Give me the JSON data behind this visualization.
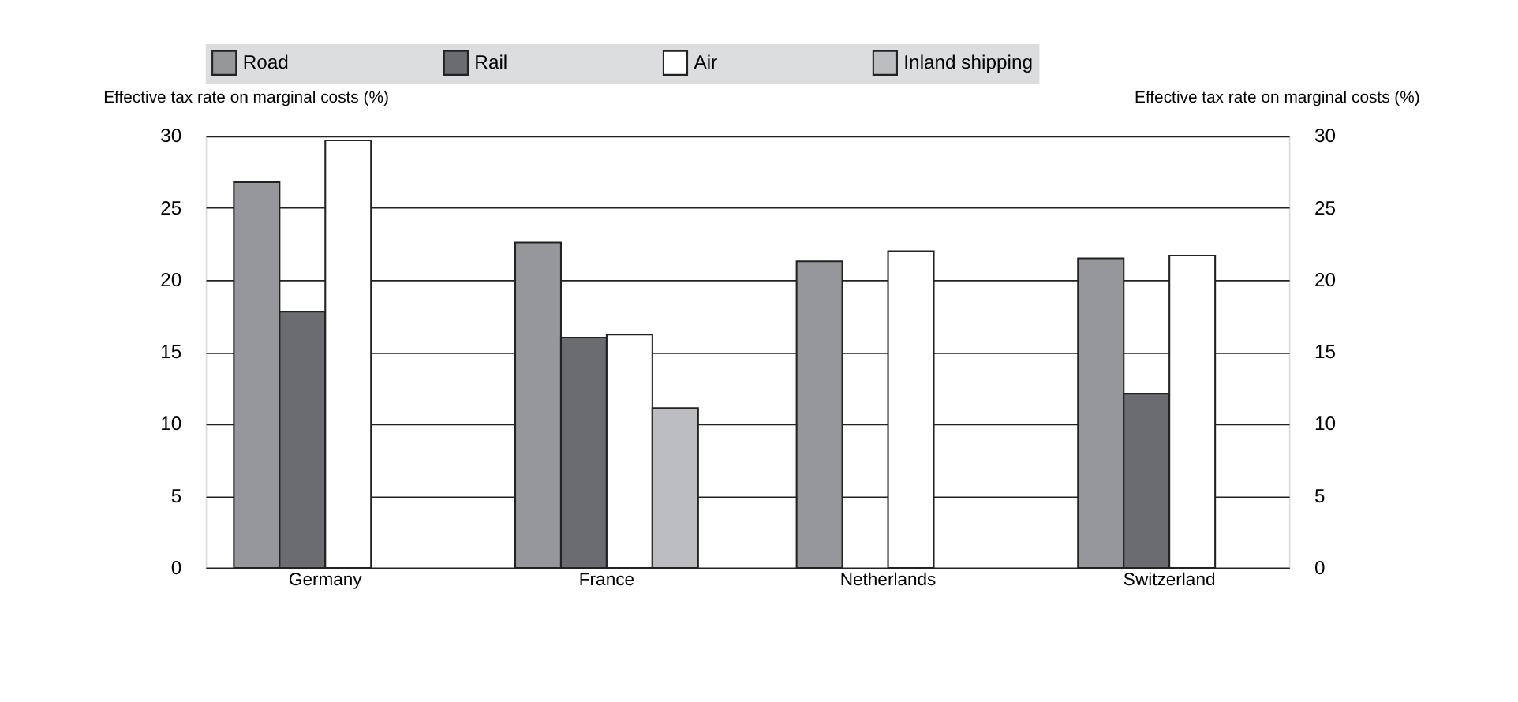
{
  "chart_data": {
    "type": "bar",
    "categories": [
      "Germany",
      "France",
      "Netherlands",
      "Switzerland"
    ],
    "series": [
      {
        "name": "Road",
        "color": "#96979b",
        "values": [
          26.8,
          22.6,
          21.3,
          21.5
        ]
      },
      {
        "name": "Rail",
        "color": "#6b6c70",
        "values": [
          17.8,
          16.0,
          null,
          12.1
        ]
      },
      {
        "name": "Air",
        "color": "#ffffff",
        "values": [
          29.7,
          16.2,
          22.0,
          21.7
        ]
      },
      {
        "name": "Inland shipping",
        "color": "#bcbdc0",
        "values": [
          null,
          11.1,
          null,
          null
        ]
      }
    ],
    "ylabel": "Effective tax rate on marginal costs (%)",
    "y2label": "Effective tax rate on marginal costs (%)",
    "ylim": [
      0,
      30
    ],
    "yticks": [
      0,
      5,
      10,
      15,
      20,
      25,
      30
    ],
    "y2lim": [
      0,
      30
    ],
    "y2ticks": [
      0,
      5,
      10,
      15,
      20,
      25,
      30
    ],
    "grid": "y",
    "legend": "top"
  }
}
